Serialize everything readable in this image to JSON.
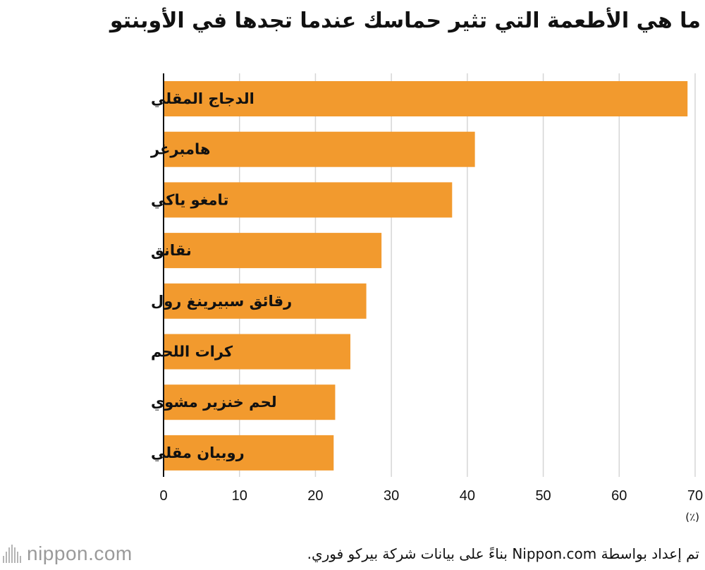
{
  "chart_data": {
    "type": "bar",
    "orientation": "horizontal",
    "title": "ما هي الأطعمة التي تثير حماسك عندما تجدها في الأوبنتو",
    "categories": [
      "الدجاج المقلي",
      "هامبرغر",
      "تامغو ياكي",
      "نقانق",
      "رقائق سبيرينغ رول",
      "كرات اللحم",
      "لحم خنزير مشوي",
      "روبيان مقلي"
    ],
    "values": [
      69,
      41,
      38,
      28.7,
      26.7,
      24.6,
      22.6,
      22.4
    ],
    "xlabel": "(٪)",
    "ylabel": "",
    "xlim": [
      0,
      70
    ],
    "xticks": [
      0,
      10,
      20,
      30,
      40,
      50,
      60,
      70
    ],
    "grid": true,
    "legend": "none",
    "bar_color": "#f29a2e"
  },
  "footer": {
    "logo_text": "nippon.com",
    "source_note": "تم إعداد بواسطة Nippon.com بناءً على بيانات شركة بيركو فوري."
  },
  "colors": {
    "bar": "#f29a2e",
    "grid": "#d5d5d5",
    "axis": "#111111",
    "text": "#111111",
    "logo": "#9a9a9a",
    "logo_dot": "#d0021b"
  }
}
